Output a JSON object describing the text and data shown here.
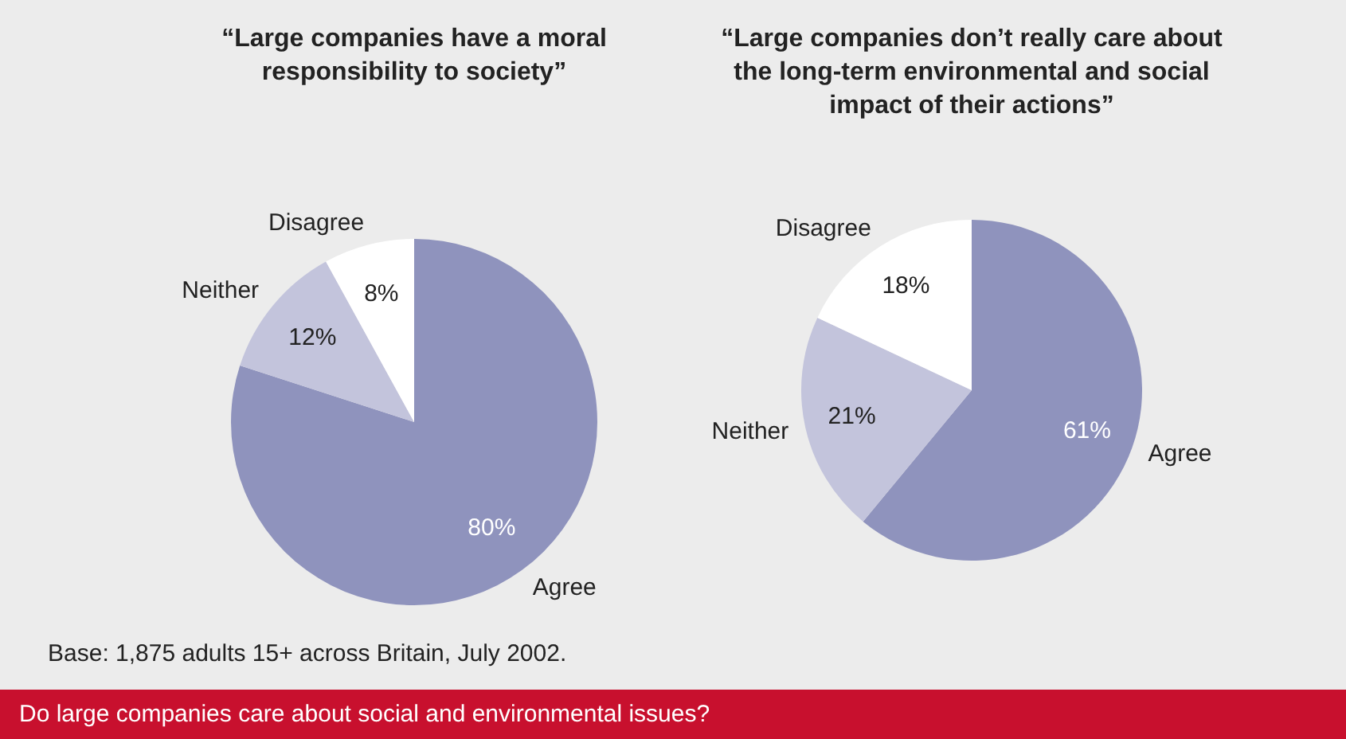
{
  "chart_data": [
    {
      "type": "pie",
      "title": "“Large companies have a moral responsibility to society”",
      "categories": [
        "Agree",
        "Neither",
        "Disagree"
      ],
      "values": [
        80,
        12,
        8
      ],
      "value_labels": [
        "80%",
        "12%",
        "8%"
      ],
      "colors": [
        "#8f93bd",
        "#c3c4dc",
        "#ffffff"
      ],
      "annotations": [
        "Base: 1,875 adults 15+ across Britain, July 2002.",
        "Do large companies care about social and environmental issues?"
      ]
    },
    {
      "type": "pie",
      "title": "“Large companies don’t really care about the long-term environmental and social impact of their actions”",
      "categories": [
        "Agree",
        "Neither",
        "Disagree"
      ],
      "values": [
        61,
        21,
        18
      ],
      "value_labels": [
        "61%",
        "21%",
        "18%"
      ],
      "colors": [
        "#8f93bd",
        "#c3c4dc",
        "#ffffff"
      ]
    }
  ]
}
